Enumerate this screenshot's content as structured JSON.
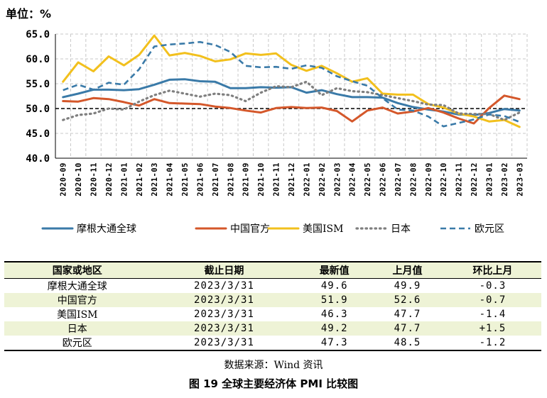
{
  "unit_label": "单位：%",
  "source": "数据来源：Wind 资讯",
  "caption": "图 19   全球主要经济体 PMI 比较图",
  "colors": {
    "jpm": "#3a7aa8",
    "china": "#d4572a",
    "ism": "#f2c01d",
    "japan": "#7f7f7f",
    "euro": "#3a7aa8",
    "grid": "#c8c8c8",
    "table_band": "#eef3d6"
  },
  "chart_data": {
    "type": "line",
    "title": "",
    "xlabel": "",
    "ylabel": "单位：%",
    "ylim": [
      40,
      65
    ],
    "yticks": [
      "40.0",
      "45.0",
      "50.0",
      "55.0",
      "60.0",
      "65.0"
    ],
    "reference_line": 50,
    "grid": true,
    "legend_position": "bottom",
    "x": [
      "2020-09",
      "2020-10",
      "2020-11",
      "2020-12",
      "2021-01",
      "2021-02",
      "2021-03",
      "2021-04",
      "2021-05",
      "2021-06",
      "2021-07",
      "2021-08",
      "2021-09",
      "2021-10",
      "2021-11",
      "2021-12",
      "2022-01",
      "2022-02",
      "2022-03",
      "2022-04",
      "2022-05",
      "2022-06",
      "2022-07",
      "2022-08",
      "2022-09",
      "2022-10",
      "2022-11",
      "2022-12",
      "2023-01",
      "2023-02",
      "2023-03"
    ],
    "series": [
      {
        "name": "摩根大通全球",
        "style": "solid",
        "values": [
          52.3,
          53.0,
          53.8,
          53.8,
          53.7,
          53.9,
          54.8,
          55.8,
          55.9,
          55.5,
          55.4,
          54.1,
          54.1,
          54.3,
          54.2,
          54.3,
          53.2,
          53.7,
          52.9,
          52.3,
          52.3,
          52.2,
          51.1,
          50.3,
          49.8,
          49.4,
          48.8,
          48.7,
          49.1,
          49.9,
          49.6
        ]
      },
      {
        "name": "中国官方",
        "style": "solid",
        "values": [
          51.5,
          51.4,
          52.1,
          51.9,
          51.3,
          50.6,
          51.9,
          51.1,
          51.0,
          50.9,
          50.4,
          50.1,
          49.6,
          49.2,
          50.1,
          50.3,
          50.1,
          50.2,
          49.5,
          47.4,
          49.6,
          50.2,
          49.0,
          49.4,
          50.1,
          49.2,
          48.0,
          47.0,
          50.1,
          52.6,
          51.9
        ]
      },
      {
        "name": "美国ISM",
        "style": "solid",
        "values": [
          55.4,
          59.3,
          57.5,
          60.5,
          58.7,
          60.8,
          64.7,
          60.7,
          61.2,
          60.6,
          59.5,
          59.9,
          61.1,
          60.8,
          61.1,
          58.8,
          57.6,
          58.6,
          57.1,
          55.4,
          56.1,
          53.0,
          52.8,
          52.8,
          50.9,
          50.2,
          49.0,
          48.4,
          47.4,
          47.7,
          46.3
        ]
      },
      {
        "name": "日本",
        "style": "dotted",
        "values": [
          47.7,
          48.7,
          49.0,
          50.0,
          49.8,
          51.4,
          52.7,
          53.6,
          53.0,
          52.4,
          53.0,
          52.7,
          51.5,
          53.2,
          54.5,
          54.3,
          55.4,
          52.7,
          54.1,
          53.5,
          53.3,
          52.7,
          52.1,
          51.5,
          50.8,
          50.7,
          49.0,
          48.9,
          48.9,
          47.7,
          49.2
        ]
      },
      {
        "name": "欧元区",
        "style": "dashed",
        "values": [
          53.7,
          54.8,
          53.8,
          55.2,
          54.8,
          57.9,
          62.5,
          62.9,
          63.1,
          63.4,
          62.8,
          61.4,
          58.6,
          58.3,
          58.4,
          58.0,
          58.7,
          58.2,
          56.5,
          55.5,
          54.6,
          52.1,
          49.8,
          49.6,
          48.4,
          46.4,
          47.1,
          47.8,
          48.8,
          48.5,
          47.3
        ]
      }
    ]
  },
  "table": {
    "headers": [
      "国家或地区",
      "截止日期",
      "最新值",
      "上月值",
      "环比上月"
    ],
    "rows": [
      [
        "摩根大通全球",
        "2023/3/31",
        "49.6",
        "49.9",
        "-0.3"
      ],
      [
        "中国官方",
        "2023/3/31",
        "51.9",
        "52.6",
        "-0.7"
      ],
      [
        "美国ISM",
        "2023/3/31",
        "46.3",
        "47.7",
        "-1.4"
      ],
      [
        "日本",
        "2023/3/31",
        "49.2",
        "47.7",
        "+1.5"
      ],
      [
        "欧元区",
        "2023/3/31",
        "47.3",
        "48.5",
        "-1.2"
      ]
    ]
  }
}
